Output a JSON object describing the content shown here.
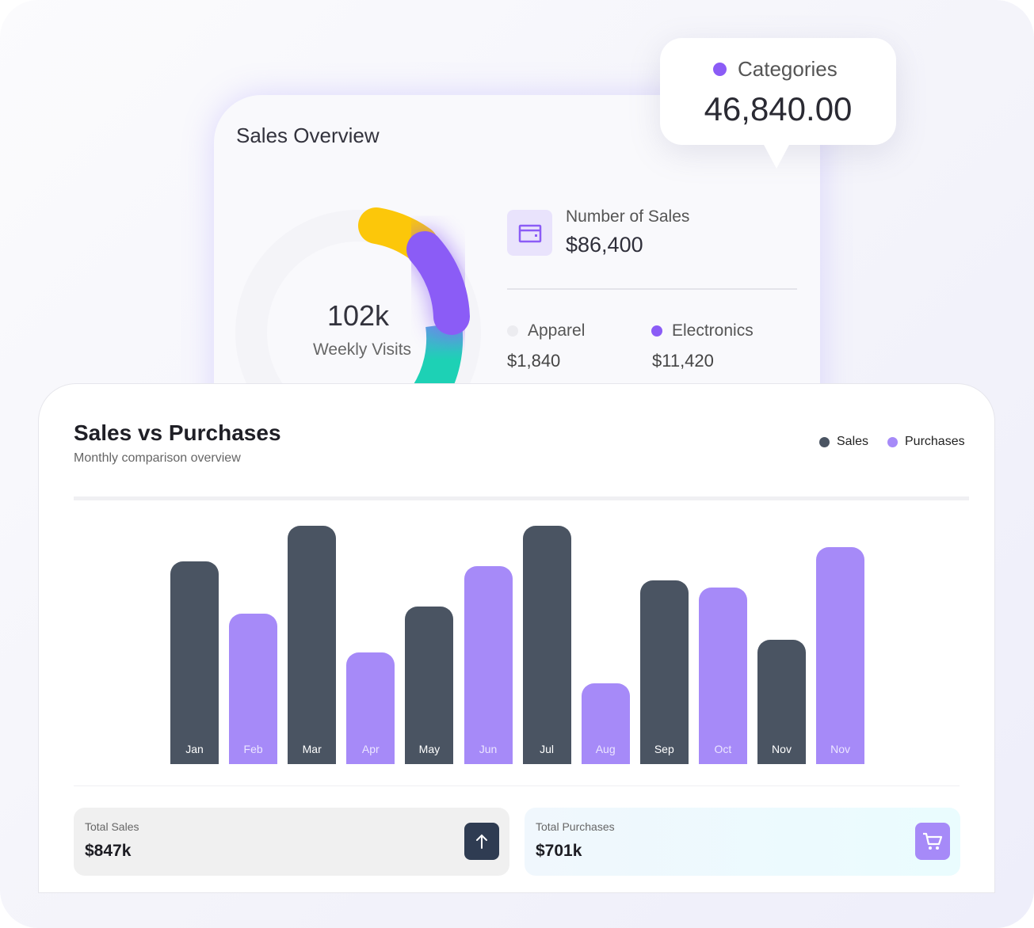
{
  "overview": {
    "title": "Sales Overview",
    "center_value": "102k",
    "center_label": "Weekly Visits",
    "number_of_sales_label": "Number of Sales",
    "number_of_sales_value": "$86,400",
    "legend": [
      {
        "label": "Apparel",
        "value": "$1,840",
        "color": "#ececf0"
      },
      {
        "label": "Electronics",
        "value": "$11,420",
        "color": "#8b5cf6"
      }
    ],
    "donut_colors": [
      "#fcc70a",
      "#8b5cf6",
      "#1dd1b5"
    ],
    "wallet_icon": "wallet-icon"
  },
  "tooltip": {
    "label": "Categories",
    "value": "46,840.00",
    "color": "#8b5cf6"
  },
  "main": {
    "title": "Sales vs Purchases",
    "subtitle": "Monthly comparison overview",
    "legend": [
      {
        "label": "Sales",
        "color": "#4a5462"
      },
      {
        "label": "Purchases",
        "color": "#a68af8"
      }
    ],
    "stats": [
      {
        "label": "Total Sales",
        "value": "$847k",
        "icon": "arrow-up-icon"
      },
      {
        "label": "Total Purchases",
        "value": "$701k",
        "icon": "cart-icon"
      }
    ]
  },
  "chart_data": {
    "type": "bar",
    "categories": [
      "Jan",
      "Feb",
      "Mar",
      "Apr",
      "May",
      "Jun",
      "Jul",
      "Aug",
      "Sep",
      "Oct",
      "Nov",
      "Nov"
    ],
    "values": [
      85,
      63,
      100,
      47,
      66,
      83,
      100,
      34,
      77,
      74,
      52,
      91
    ],
    "series_of_bar": [
      "Sales",
      "Purchases",
      "Sales",
      "Purchases",
      "Sales",
      "Purchases",
      "Sales",
      "Purchases",
      "Sales",
      "Purchases",
      "Sales",
      "Purchases"
    ],
    "colors": {
      "Sales": "#4a5462",
      "Purchases": "#a68af8"
    },
    "ylim": [
      0,
      100
    ],
    "grid": false,
    "legend_position": "top-right"
  }
}
